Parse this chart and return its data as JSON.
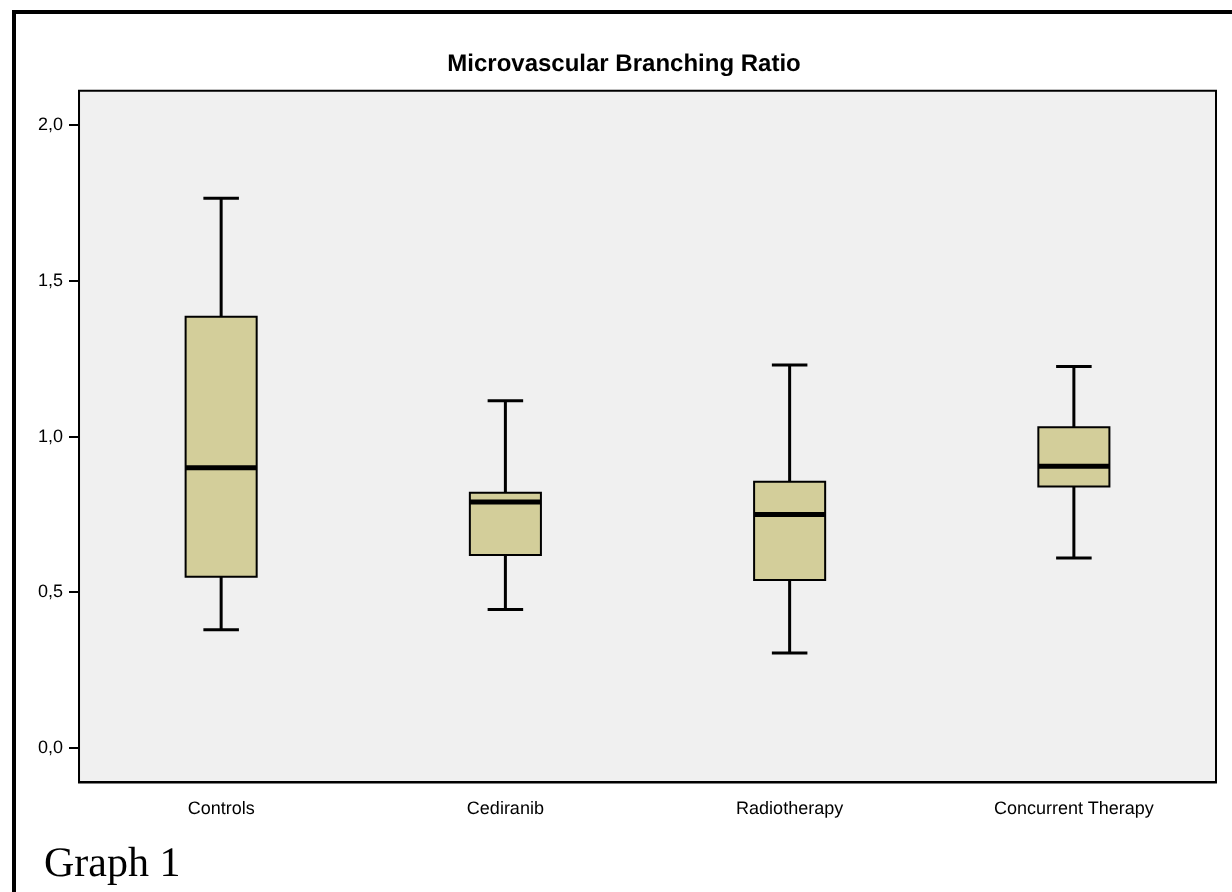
{
  "chart_data": {
    "type": "box",
    "title": "Microvascular Branching Ratio",
    "categories": [
      "Controls",
      "Cediranib",
      "Radiotherapy",
      "Concurrent Therapy"
    ],
    "color": "#d3ce9a",
    "boxes": [
      {
        "low": 0.38,
        "q1": 0.55,
        "median": 0.9,
        "q3": 1.385,
        "high": 1.765
      },
      {
        "low": 0.445,
        "q1": 0.62,
        "median": 0.79,
        "q3": 0.82,
        "high": 1.115
      },
      {
        "low": 0.305,
        "q1": 0.54,
        "median": 0.75,
        "q3": 0.855,
        "high": 1.23
      },
      {
        "low": 0.61,
        "q1": 0.84,
        "median": 0.905,
        "q3": 1.03,
        "high": 1.225
      }
    ],
    "ylim": [
      -0.11,
      2.11
    ],
    "yticks": [
      {
        "value": 0,
        "label": "0,0"
      },
      {
        "value": 0.5,
        "label": "0,5"
      },
      {
        "value": 1,
        "label": "1,0"
      },
      {
        "value": 1.5,
        "label": "1,5"
      },
      {
        "value": 2,
        "label": "2,0"
      }
    ],
    "grid": false,
    "annotations": [
      "Graph 1"
    ]
  }
}
